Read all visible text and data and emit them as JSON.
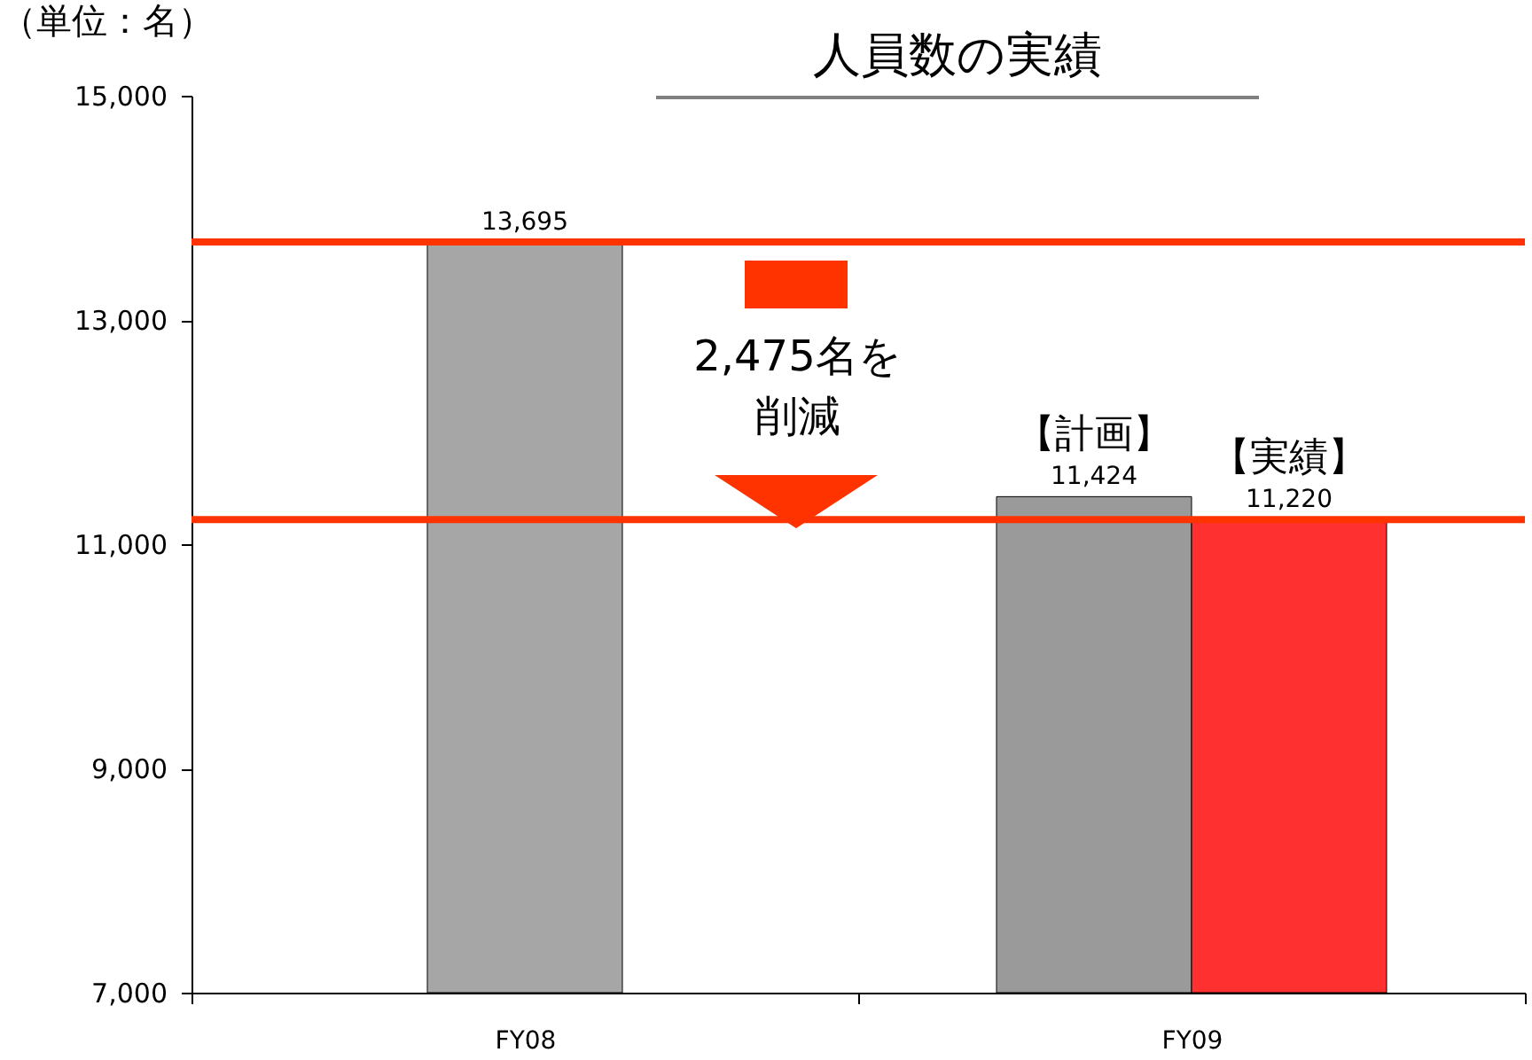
{
  "chart_data": {
    "type": "bar",
    "title": "人員数の実績",
    "ylabel": "（単位：名）",
    "categories": [
      "FY08",
      "FY09"
    ],
    "series": [
      {
        "color": "#a6a6a6",
        "values": [
          13695,
          null
        ],
        "value_labels": [
          "13,695",
          null
        ]
      },
      {
        "name": "【計画】",
        "color": "#9a9a9a",
        "values": [
          null,
          11424
        ],
        "value_labels": [
          null,
          "11,424"
        ]
      },
      {
        "name": "【実績】",
        "color": "#ff3030",
        "values": [
          null,
          11220
        ],
        "value_labels": [
          null,
          "11,220"
        ]
      }
    ],
    "ylim": [
      7000,
      15000
    ],
    "yticks": [
      {
        "value": 7000,
        "label": "7,000"
      },
      {
        "value": 9000,
        "label": "9,000"
      },
      {
        "value": 11000,
        "label": "11,000"
      },
      {
        "value": 13000,
        "label": "13,000"
      },
      {
        "value": 15000,
        "label": "15,000"
      }
    ],
    "legend": false,
    "ref_lines": [
      {
        "axis": "y",
        "value": 13695,
        "color": "#ff3300"
      },
      {
        "axis": "y",
        "value": 11220,
        "color": "#ff3300"
      }
    ],
    "annotations": [
      "2,475名を",
      "削減"
    ]
  }
}
